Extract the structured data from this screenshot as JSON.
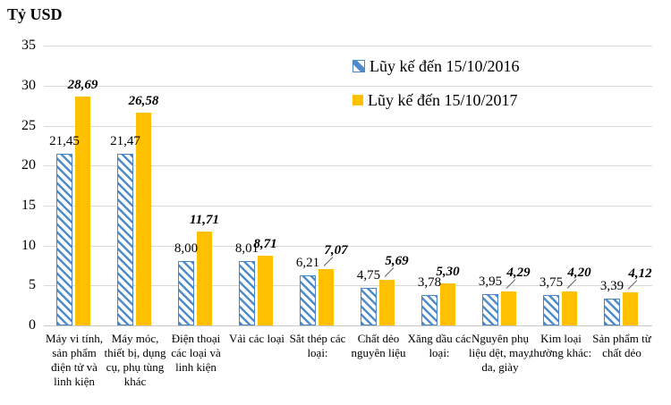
{
  "title": "Tỷ USD",
  "legend": [
    {
      "label": "Lũy kế đến 15/10/2016"
    },
    {
      "label": "Lũy kế đến 15/10/2017"
    }
  ],
  "colors": {
    "blue": "#4A86C5",
    "blue_stripe": "#4E8CCB",
    "orange": "#FFC000",
    "gridline": "#D9D9D9",
    "leader_line": "#595959"
  },
  "chart_data": {
    "type": "bar",
    "title": "Tỷ USD",
    "ylabel": "Tỷ USD",
    "ylim": [
      0,
      35
    ],
    "yticks": [
      0,
      5,
      10,
      15,
      20,
      25,
      30,
      35
    ],
    "grid": true,
    "legend_position": "top-right",
    "categories": [
      "Máy vi tính, sản phẩm điện tử và linh kiện",
      "Máy móc, thiết bị, dụng cụ, phụ tùng khác",
      "Điện thoại các loại và linh kiện",
      "Vải các loại",
      "Sắt thép các loại:",
      "Chất dẻo nguyên liệu",
      "Xăng dầu các loại:",
      "Nguyên phụ liệu dệt, may, da, giày",
      "Kim loại thường khác:",
      "Sản phẩm từ chất dẻo"
    ],
    "series": [
      {
        "name": "Lũy kế đến 15/10/2016",
        "values": [
          21.45,
          21.47,
          8.0,
          8.01,
          6.21,
          4.75,
          3.78,
          3.95,
          3.75,
          3.39
        ],
        "labels": [
          "21,45",
          "21,47",
          "8,00",
          "8,01",
          "6,21",
          "4,75",
          "3,78",
          "3,95",
          "3,75",
          "3,39"
        ]
      },
      {
        "name": "Lũy kế đến 15/10/2017",
        "values": [
          28.69,
          26.58,
          11.71,
          8.71,
          7.07,
          5.69,
          5.3,
          4.29,
          4.2,
          4.12
        ],
        "labels": [
          "28,69",
          "26,58",
          "11,71",
          "8,71",
          "7,07",
          "5,69",
          "5,30",
          "4,29",
          "4,20",
          "4,12"
        ],
        "callout": [
          false,
          false,
          false,
          false,
          true,
          true,
          false,
          true,
          true,
          true
        ]
      }
    ]
  }
}
